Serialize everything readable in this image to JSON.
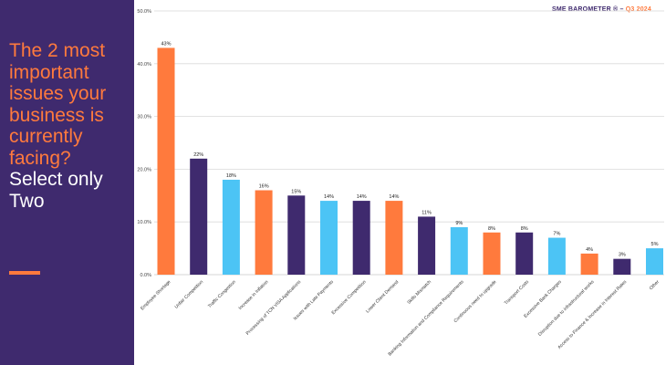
{
  "sidebar": {
    "question_line1": "The 2 most important issues your business is currently facing?",
    "question_line2": "Select only Two"
  },
  "brand": {
    "name": "SME BAROMETER ®",
    "separator": "–",
    "period": "Q3 2024"
  },
  "colors": {
    "sidebar_bg": "#3f2a6e",
    "orange": "#ff7a3d",
    "purple": "#3f2a6e",
    "blue": "#4cc4f5"
  },
  "chart_data": {
    "type": "bar",
    "categories": [
      "Employee Shortage",
      "Unfair Competition",
      "Traffic Congestion",
      "Increase in Inflation",
      "Processing of TCN VISA Applications",
      "Issues with Late Payments",
      "Excessive Competition",
      "Lower Client Demand",
      "Skills Mismatch",
      "Banking Information and Compliance Requirements",
      "Continuous need to upgrade",
      "Transport Costs",
      "Excessive Bank Charges",
      "Disruption due to infrastructural works",
      "Access to Finance & Increase in Interest Rates",
      "Other"
    ],
    "values": [
      43,
      22,
      18,
      16,
      15,
      14,
      14,
      14,
      11,
      9,
      8,
      8,
      7,
      4,
      3,
      5
    ],
    "value_labels": [
      "43%",
      "22%",
      "18%",
      "16%",
      "15%",
      "14%",
      "14%",
      "14%",
      "11%",
      "9%",
      "8%",
      "8%",
      "7%",
      "4%",
      "3%",
      "5%"
    ],
    "bar_colors": [
      "#ff7a3d",
      "#3f2a6e",
      "#4cc4f5",
      "#ff7a3d",
      "#3f2a6e",
      "#4cc4f5",
      "#3f2a6e",
      "#ff7a3d",
      "#3f2a6e",
      "#4cc4f5",
      "#ff7a3d",
      "#3f2a6e",
      "#4cc4f5",
      "#ff7a3d",
      "#3f2a6e",
      "#4cc4f5"
    ],
    "y_ticks": [
      "0.0%",
      "10.0%",
      "20.0%",
      "30.0%",
      "40.0%",
      "50.0%"
    ],
    "ylim": [
      0,
      50
    ],
    "grid": true,
    "title": "",
    "xlabel": "",
    "ylabel": ""
  }
}
